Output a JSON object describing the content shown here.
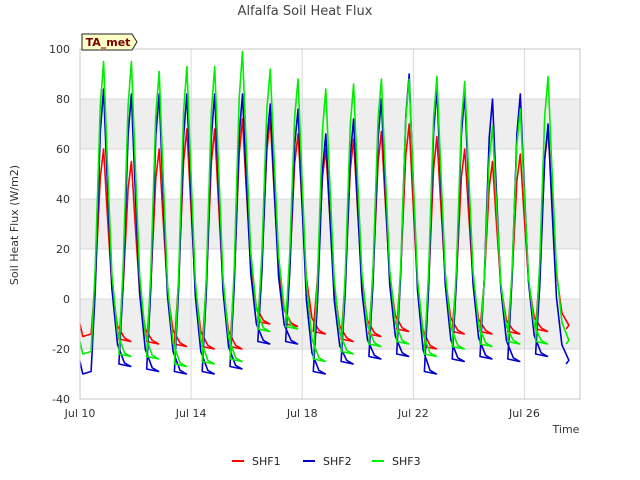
{
  "chart_data": {
    "type": "line",
    "title": "Alfalfa Soil Heat Flux",
    "xlabel": "Time",
    "ylabel": "Soil Heat Flux (W/m2)",
    "badge": "TA_met",
    "x_unit": "days since Jul 10",
    "xlim": [
      0,
      18.0
    ],
    "ylim": [
      -40,
      100
    ],
    "yticks": [
      -40,
      -20,
      0,
      20,
      40,
      60,
      80,
      100
    ],
    "xticks": [
      {
        "day": 0,
        "label": "Jul 10"
      },
      {
        "day": 4,
        "label": "Jul 14"
      },
      {
        "day": 8,
        "label": "Jul 18"
      },
      {
        "day": 12,
        "label": "Jul 22"
      },
      {
        "day": 16,
        "label": "Jul 26"
      }
    ],
    "bands": [
      [
        -20,
        0
      ],
      [
        20,
        40
      ],
      [
        60,
        80
      ]
    ],
    "legend_position": "bottom-center",
    "series": [
      {
        "name": "SHF1",
        "color": "#ff0000",
        "peaks": [
          {
            "day": 0.85,
            "value": 60
          },
          {
            "day": 1.85,
            "value": 55
          },
          {
            "day": 2.85,
            "value": 60
          },
          {
            "day": 3.85,
            "value": 68
          },
          {
            "day": 4.85,
            "value": 68
          },
          {
            "day": 5.85,
            "value": 72
          },
          {
            "day": 6.85,
            "value": 72
          },
          {
            "day": 7.85,
            "value": 66
          },
          {
            "day": 8.85,
            "value": 60
          },
          {
            "day": 9.85,
            "value": 64
          },
          {
            "day": 10.85,
            "value": 67
          },
          {
            "day": 11.85,
            "value": 70
          },
          {
            "day": 12.85,
            "value": 65
          },
          {
            "day": 13.85,
            "value": 60
          },
          {
            "day": 14.85,
            "value": 55
          },
          {
            "day": 15.85,
            "value": 58
          },
          {
            "day": 16.85,
            "value": 68
          }
        ],
        "troughs": [
          -15,
          -17,
          -18,
          -19,
          -20,
          -20,
          -10,
          -11,
          -14,
          -17,
          -15,
          -13,
          -20,
          -14,
          -14,
          -14,
          -13,
          -12
        ]
      },
      {
        "name": "SHF2",
        "color": "#0000cc",
        "peaks": [
          {
            "day": 0.85,
            "value": 84
          },
          {
            "day": 1.85,
            "value": 82
          },
          {
            "day": 2.85,
            "value": 82
          },
          {
            "day": 3.85,
            "value": 82
          },
          {
            "day": 4.85,
            "value": 82
          },
          {
            "day": 5.85,
            "value": 82
          },
          {
            "day": 6.85,
            "value": 78
          },
          {
            "day": 7.85,
            "value": 76
          },
          {
            "day": 8.85,
            "value": 66
          },
          {
            "day": 9.85,
            "value": 72
          },
          {
            "day": 10.85,
            "value": 80
          },
          {
            "day": 11.85,
            "value": 90
          },
          {
            "day": 12.85,
            "value": 84
          },
          {
            "day": 13.85,
            "value": 82
          },
          {
            "day": 14.85,
            "value": 80
          },
          {
            "day": 15.85,
            "value": 82
          },
          {
            "day": 16.85,
            "value": 70
          }
        ],
        "troughs": [
          -30,
          -27,
          -29,
          -30,
          -30,
          -28,
          -18,
          -18,
          -30,
          -26,
          -24,
          -23,
          -30,
          -25,
          -24,
          -25,
          -23,
          -26
        ]
      },
      {
        "name": "SHF3",
        "color": "#00ee00",
        "peaks": [
          {
            "day": 0.85,
            "value": 95
          },
          {
            "day": 1.85,
            "value": 95
          },
          {
            "day": 2.85,
            "value": 91
          },
          {
            "day": 3.85,
            "value": 93
          },
          {
            "day": 4.85,
            "value": 93
          },
          {
            "day": 5.85,
            "value": 99
          },
          {
            "day": 6.85,
            "value": 92
          },
          {
            "day": 7.85,
            "value": 88
          },
          {
            "day": 8.85,
            "value": 84
          },
          {
            "day": 9.85,
            "value": 86
          },
          {
            "day": 10.85,
            "value": 88
          },
          {
            "day": 11.85,
            "value": 88
          },
          {
            "day": 12.85,
            "value": 89
          },
          {
            "day": 13.85,
            "value": 87
          },
          {
            "day": 14.85,
            "value": 69
          },
          {
            "day": 15.85,
            "value": 76
          },
          {
            "day": 16.85,
            "value": 89
          }
        ],
        "troughs": [
          -22,
          -23,
          -24,
          -27,
          -26,
          -25,
          -13,
          -12,
          -25,
          -22,
          -19,
          -18,
          -23,
          -20,
          -19,
          -18,
          -18,
          -18
        ]
      }
    ]
  }
}
